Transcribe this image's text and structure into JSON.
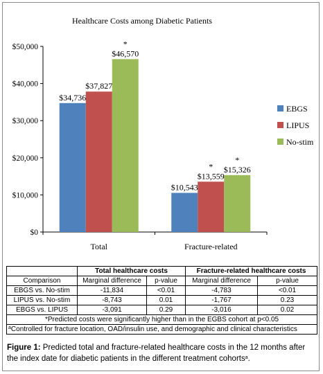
{
  "chart_data": {
    "type": "bar",
    "title": "Healthcare Costs among Diabetic Patients",
    "categories": [
      "Total",
      "Fracture-related"
    ],
    "series": [
      {
        "name": "EBGS",
        "color": "#4f81bd",
        "values": [
          34736,
          10543
        ],
        "labels": [
          "$34,736",
          "$10,543"
        ],
        "asterisk": [
          false,
          false
        ]
      },
      {
        "name": "LIPUS",
        "color": "#c0504d",
        "values": [
          37827,
          13559
        ],
        "labels": [
          "$37,827",
          "$13,559"
        ],
        "asterisk": [
          false,
          true
        ]
      },
      {
        "name": "No-stim",
        "color": "#9bbb59",
        "values": [
          46570,
          15326
        ],
        "labels": [
          "$46,570",
          "$15,326"
        ],
        "asterisk": [
          true,
          true
        ]
      }
    ],
    "ylim": [
      0,
      50000
    ],
    "yticks": [
      0,
      10000,
      20000,
      30000,
      40000,
      50000
    ],
    "ytick_labels": [
      "$0",
      "$10,000",
      "$20,000",
      "$30,000",
      "$40,000",
      "$50,000"
    ],
    "asterisk_symbol": "*",
    "legend_position": "right",
    "grid": false
  },
  "table": {
    "group_headers": [
      "Total healthcare costs",
      "Fracture-related healthcare costs"
    ],
    "columns": [
      "Comparison",
      "Marginal difference",
      "p-value",
      "Marginal difference",
      "p-value"
    ],
    "rows": [
      [
        "EBGS vs. No-stim",
        "-11,834",
        "<0.01",
        "-4,783",
        "<0.01"
      ],
      [
        "LIPUS vs. No-stim",
        "-8,743",
        "0.01",
        "-1,767",
        "0.23"
      ],
      [
        "EBGS vs. LIPUS",
        "-3,091",
        "0.29",
        "-3,016",
        "0.02"
      ]
    ],
    "note1": "*Predicted costs were significantly higher than in the EGBS cohort at p<0.05",
    "note2_sup": "a",
    "note2": "Controlled for fracture location, OAD/insulin use, and demographic and clinical characteristics"
  },
  "caption": {
    "label": "Figure 1:",
    "text": " Predicted total and fracture-related healthcare costs in the 12 months after the index date for diabetic patients in the different treatment cohorts",
    "sup": "a",
    "end": "."
  }
}
